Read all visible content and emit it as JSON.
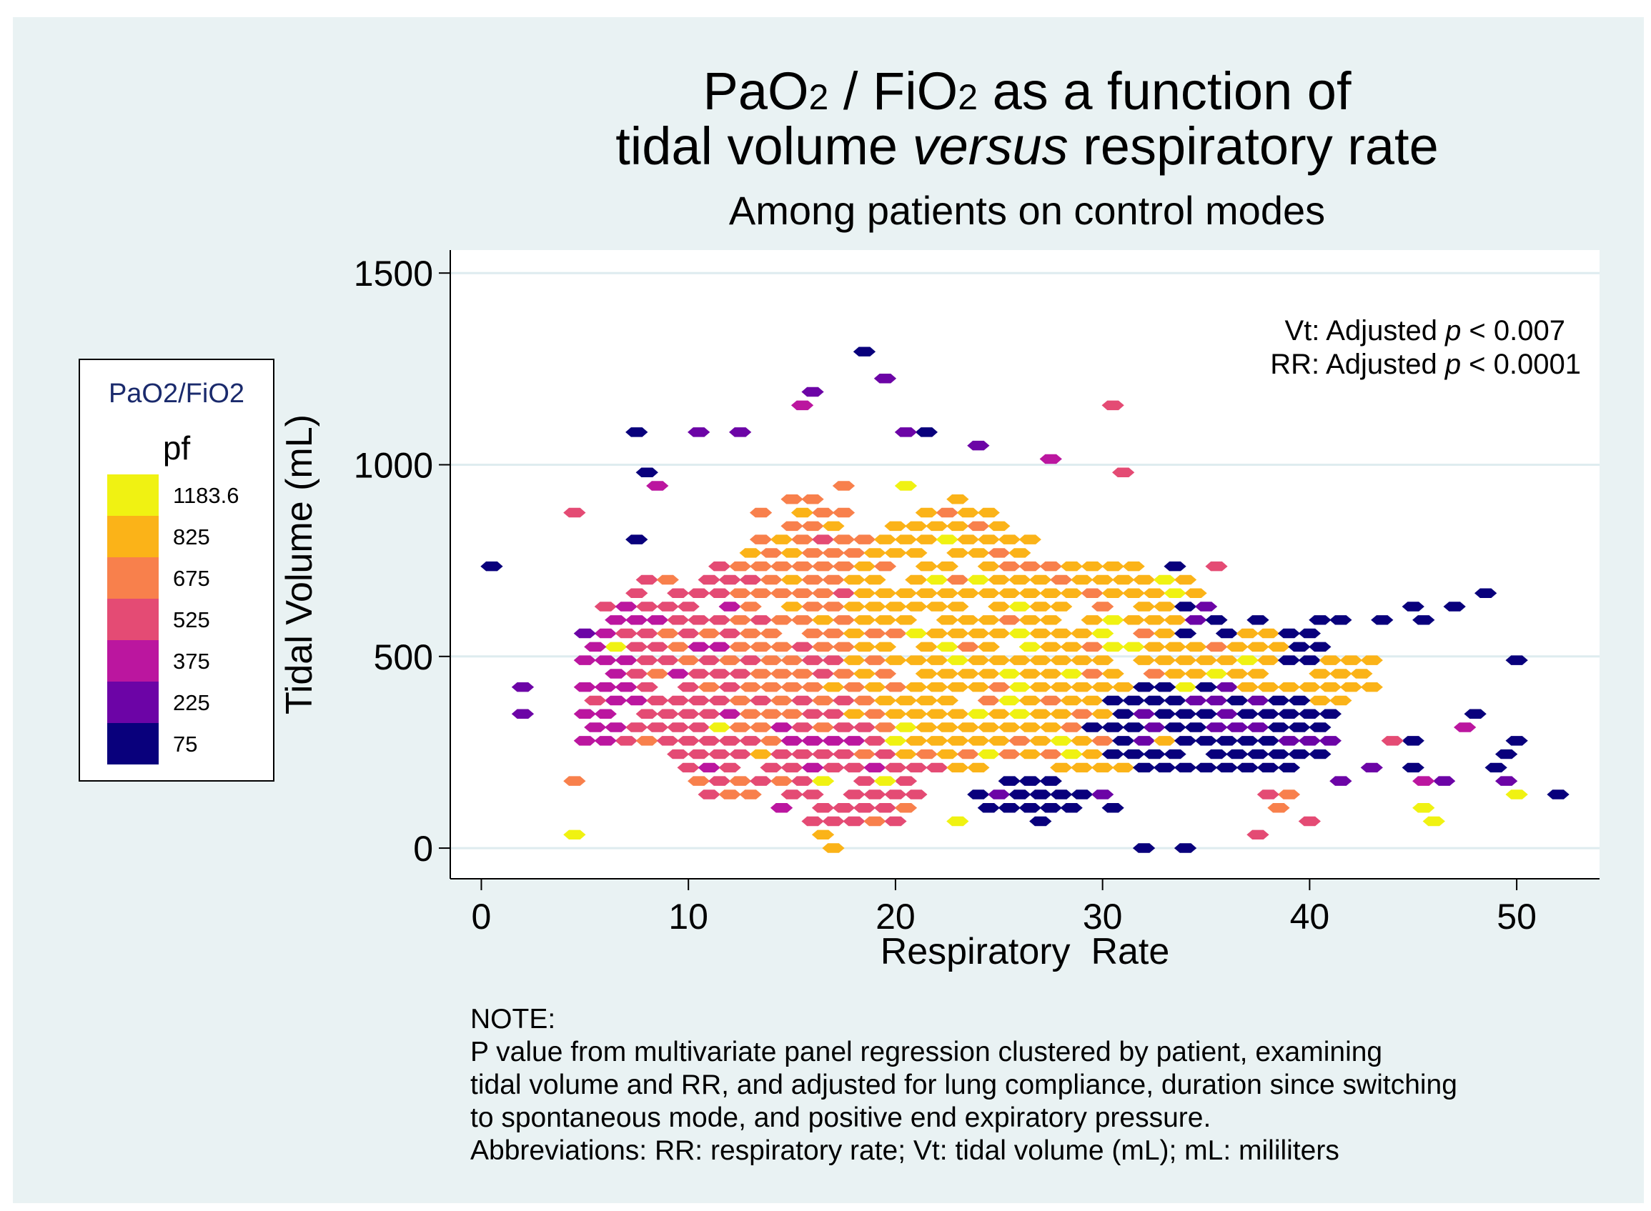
{
  "chart_data": {
    "type": "hexbin-heatmap",
    "title_line1_parts": {
      "a": "PaO",
      "a_sub": "2",
      "b": " / FiO",
      "b_sub": "2",
      "c": " as a function of"
    },
    "title_line2_parts": {
      "a": "tidal volume ",
      "b": "versus",
      "c": " respiratory rate"
    },
    "subtitle": "Among patients on control modes",
    "xlabel": "Respiratory  Rate",
    "ylabel": "Tidal Volume (mL)",
    "xlim": [
      -1.5,
      54
    ],
    "ylim": [
      -80,
      1560
    ],
    "xticks": [
      0,
      10,
      20,
      30,
      40,
      50
    ],
    "yticks": [
      0,
      500,
      1000,
      1500
    ],
    "grid": true,
    "annotation": {
      "vt": {
        "pre": "Vt: Adjusted ",
        "p": "p",
        "post": " < 0.007"
      },
      "rr": {
        "pre": "RR: Adjusted ",
        "p": "p",
        "post": " < 0.0001"
      }
    },
    "legend": {
      "title": "PaO2/FiO2",
      "subtitle": "pf",
      "placement": "left",
      "bins": [
        {
          "label": "1183.6",
          "color": "#f0f212"
        },
        {
          "label": "825",
          "color": "#fbb318"
        },
        {
          "label": "675",
          "color": "#f8804c"
        },
        {
          "label": "525",
          "color": "#e44b74"
        },
        {
          "label": "375",
          "color": "#bb169f"
        },
        {
          "label": "225",
          "color": "#6c04a6"
        },
        {
          "label": "75",
          "color": "#09007c"
        }
      ]
    },
    "hex_size": {
      "x": 0.5,
      "y": 25
    },
    "points": [
      {
        "x": 0.6,
        "y": 725,
        "level": 0
      },
      {
        "x": 1.9,
        "y": 410,
        "level": 1
      },
      {
        "x": 1.8,
        "y": 350,
        "level": 1
      },
      {
        "x": 4.6,
        "y": 885,
        "level": 3
      },
      {
        "x": 4.5,
        "y": 190,
        "level": 4
      },
      {
        "x": 4.4,
        "y": 35,
        "level": 6
      },
      {
        "x": 7.5,
        "y": 1075,
        "level": 0
      },
      {
        "x": 10.0,
        "y": 1075,
        "level": 1
      },
      {
        "x": 12.6,
        "y": 1075,
        "level": 1
      },
      {
        "x": 18.0,
        "y": 1290,
        "level": 0
      },
      {
        "x": 19.2,
        "y": 1230,
        "level": 1
      },
      {
        "x": 16.0,
        "y": 1195,
        "level": 1
      },
      {
        "x": 15.6,
        "y": 1165,
        "level": 2
      },
      {
        "x": 21.2,
        "y": 1075,
        "level": 0
      },
      {
        "x": 20.0,
        "y": 1075,
        "level": 1
      },
      {
        "x": 24.3,
        "y": 1045,
        "level": 1
      },
      {
        "x": 27.4,
        "y": 1010,
        "level": 2
      },
      {
        "x": 30.0,
        "y": 1140,
        "level": 3
      },
      {
        "x": 30.5,
        "y": 975,
        "level": 3
      },
      {
        "x": 20.1,
        "y": 960,
        "level": 5
      },
      {
        "x": 22.8,
        "y": 925,
        "level": 5
      },
      {
        "x": 17.3,
        "y": 955,
        "level": 4
      },
      {
        "x": 8.4,
        "y": 975,
        "level": 0
      },
      {
        "x": 7.9,
        "y": 810,
        "level": 0
      },
      {
        "x": 8.6,
        "y": 930,
        "level": 2
      },
      {
        "x": 33.4,
        "y": 720,
        "level": 0
      },
      {
        "x": 35.0,
        "y": 725,
        "level": 3
      },
      {
        "x": 31.6,
        "y": 555,
        "level": 4
      },
      {
        "x": 37.2,
        "y": 600,
        "level": 0
      },
      {
        "x": 40.0,
        "y": 580,
        "level": 0
      },
      {
        "x": 41.7,
        "y": 600,
        "level": 0
      },
      {
        "x": 43.1,
        "y": 600,
        "level": 0
      },
      {
        "x": 44.8,
        "y": 635,
        "level": 0
      },
      {
        "x": 45.5,
        "y": 600,
        "level": 0
      },
      {
        "x": 46.5,
        "y": 635,
        "level": 0
      },
      {
        "x": 48.2,
        "y": 665,
        "level": 0
      },
      {
        "x": 49.8,
        "y": 480,
        "level": 0
      },
      {
        "x": 48.0,
        "y": 350,
        "level": 0
      },
      {
        "x": 47.5,
        "y": 320,
        "level": 2
      },
      {
        "x": 50.0,
        "y": 290,
        "level": 0
      },
      {
        "x": 49.7,
        "y": 260,
        "level": 0
      },
      {
        "x": 49.3,
        "y": 225,
        "level": 0
      },
      {
        "x": 52.4,
        "y": 130,
        "level": 0
      },
      {
        "x": 49.8,
        "y": 130,
        "level": 6
      },
      {
        "x": 49.1,
        "y": 160,
        "level": 1
      },
      {
        "x": 46.4,
        "y": 190,
        "level": 1
      },
      {
        "x": 44.7,
        "y": 225,
        "level": 0
      },
      {
        "x": 44.8,
        "y": 285,
        "level": 0
      },
      {
        "x": 43.5,
        "y": 290,
        "level": 3
      },
      {
        "x": 42.9,
        "y": 220,
        "level": 1
      },
      {
        "x": 45.1,
        "y": 160,
        "level": 2
      },
      {
        "x": 45.1,
        "y": 100,
        "level": 6
      },
      {
        "x": 45.7,
        "y": 70,
        "level": 6
      },
      {
        "x": 11.2,
        "y": 320,
        "level": 6
      },
      {
        "x": 6.0,
        "y": 540,
        "level": 6
      },
      {
        "x": 16.9,
        "y": 160,
        "level": 6
      },
      {
        "x": 19.1,
        "y": 160,
        "level": 6
      },
      {
        "x": 16.5,
        "y": 35,
        "level": 5
      },
      {
        "x": 22.5,
        "y": 70,
        "level": 6
      },
      {
        "x": 20.0,
        "y": 960,
        "level": 6
      },
      {
        "x": 16.5,
        "y": 5,
        "level": 5
      },
      {
        "x": 39.2,
        "y": 130,
        "level": 4
      },
      {
        "x": 41.0,
        "y": 160,
        "level": 1
      },
      {
        "x": 37.6,
        "y": 130,
        "level": 3
      },
      {
        "x": 38.0,
        "y": 100,
        "level": 4
      },
      {
        "x": 40.0,
        "y": 70,
        "level": 3
      },
      {
        "x": 37.8,
        "y": 40,
        "level": 3
      },
      {
        "x": 34.0,
        "y": 10,
        "level": 0
      },
      {
        "x": 31.5,
        "y": 10,
        "level": 0
      }
    ],
    "regions": [
      {
        "cx": 8.5,
        "cy": 480,
        "rx": 3.4,
        "ry": 230,
        "level": 3
      },
      {
        "cx": 5.7,
        "cy": 420,
        "rx": 1.6,
        "ry": 180,
        "level": 2
      },
      {
        "cx": 11.5,
        "cy": 300,
        "rx": 2.2,
        "ry": 120,
        "level": 2
      },
      {
        "cx": 12.3,
        "cy": 440,
        "rx": 3.4,
        "ry": 320,
        "level": 3
      },
      {
        "cx": 16.0,
        "cy": 560,
        "rx": 4.2,
        "ry": 380,
        "level": 4
      },
      {
        "cx": 18.0,
        "cy": 230,
        "rx": 4.2,
        "ry": 190,
        "level": 3
      },
      {
        "cx": 22.5,
        "cy": 520,
        "rx": 5.5,
        "ry": 360,
        "level": 5
      },
      {
        "cx": 30.0,
        "cy": 450,
        "rx": 6.5,
        "ry": 290,
        "level": 5
      },
      {
        "cx": 37.5,
        "cy": 420,
        "rx": 4.2,
        "ry": 150,
        "level": 5
      },
      {
        "cx": 41.5,
        "cy": 450,
        "rx": 2.0,
        "ry": 60,
        "level": 5
      },
      {
        "cx": 34.0,
        "cy": 320,
        "rx": 4.2,
        "ry": 140,
        "level": 0
      },
      {
        "cx": 27.0,
        "cy": 130,
        "rx": 4.0,
        "ry": 60,
        "level": 0
      },
      {
        "cx": 38.5,
        "cy": 300,
        "rx": 2.8,
        "ry": 120,
        "level": 0
      },
      {
        "cx": 34.5,
        "cy": 600,
        "rx": 1.8,
        "ry": 60,
        "level": 0
      },
      {
        "cx": 39.5,
        "cy": 520,
        "rx": 1.5,
        "ry": 60,
        "level": 0
      }
    ]
  },
  "note": {
    "heading": "NOTE:",
    "line1": "P value from multivariate panel regression clustered by patient, examining",
    "line2": "tidal volume and RR, and adjusted for lung compliance, duration since switching",
    "line3": "to spontaneous mode, and positive end expiratory pressure.",
    "line4": "Abbreviations: RR: respiratory rate; Vt: tidal volume (mL); mL: mililiters"
  }
}
